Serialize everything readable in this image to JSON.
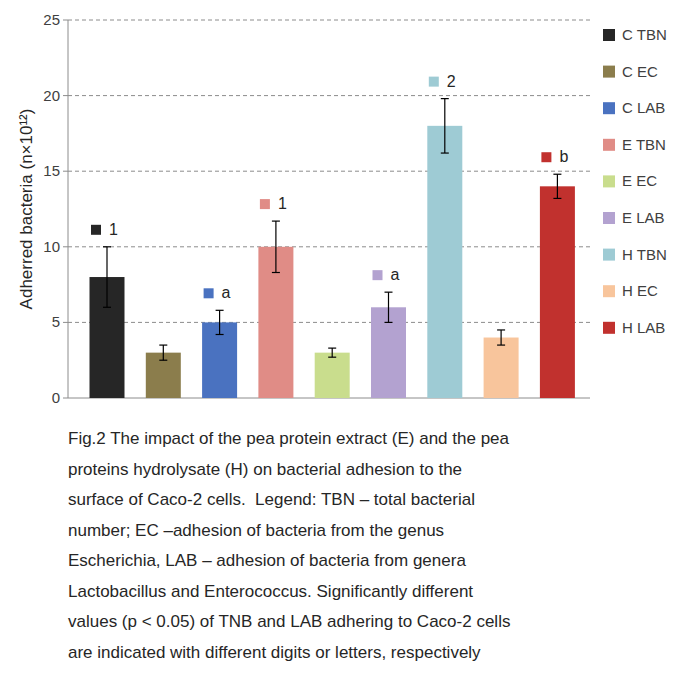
{
  "chart_data": {
    "type": "bar",
    "y_label": "Adherred bacteria (n×10¹²)",
    "categories": [
      null
    ],
    "ylim": [
      0,
      25
    ],
    "yticks": [
      0,
      5,
      10,
      15,
      20,
      25
    ],
    "grid": true,
    "legend": "right",
    "series": [
      {
        "name": "C TBN",
        "color": "#262626",
        "values": [
          8
        ],
        "errors": [
          2
        ],
        "significance": [
          "1"
        ]
      },
      {
        "name": "C EC",
        "color": "#8b7d4c",
        "values": [
          3
        ],
        "errors": [
          0.5
        ],
        "significance": [
          null
        ]
      },
      {
        "name": "C LAB",
        "color": "#4a72c0",
        "values": [
          5
        ],
        "errors": [
          0.8
        ],
        "significance": [
          "a"
        ]
      },
      {
        "name": "E TBN",
        "color": "#e08c86",
        "values": [
          10
        ],
        "errors": [
          1.7
        ],
        "significance": [
          "1"
        ]
      },
      {
        "name": "E EC",
        "color": "#c9dd8d",
        "values": [
          3
        ],
        "errors": [
          0.3
        ],
        "significance": [
          null
        ]
      },
      {
        "name": "E LAB",
        "color": "#b3a2d0",
        "values": [
          6
        ],
        "errors": [
          1
        ],
        "significance": [
          "a"
        ]
      },
      {
        "name": "H TBN",
        "color": "#9ecbd4",
        "values": [
          18
        ],
        "errors": [
          1.8
        ],
        "significance": [
          "2"
        ]
      },
      {
        "name": "H EC",
        "color": "#f8c59c",
        "values": [
          4
        ],
        "errors": [
          0.5
        ],
        "significance": [
          null
        ]
      },
      {
        "name": "H LAB",
        "color": "#c1312e",
        "values": [
          14
        ],
        "errors": [
          0.8
        ],
        "significance": [
          "b"
        ]
      }
    ],
    "caption": [
      "Fig.2 The impact of the pea protein extract (E) and the pea",
      "proteins hydrolysate (H) on bacterial adhesion to the",
      "surface of Caco-2 cells.  Legend: TBN – total bacterial",
      "number; EC –adhesion of bacteria from the genus",
      "Escherichia, LAB – adhesion of bacteria from genera",
      "Lactobacillus and Enterococcus. Significantly different",
      "values (p < 0.05) of TNB and LAB adhering to Caco-2 cells",
      "are indicated with different digits or letters, respectively"
    ]
  }
}
